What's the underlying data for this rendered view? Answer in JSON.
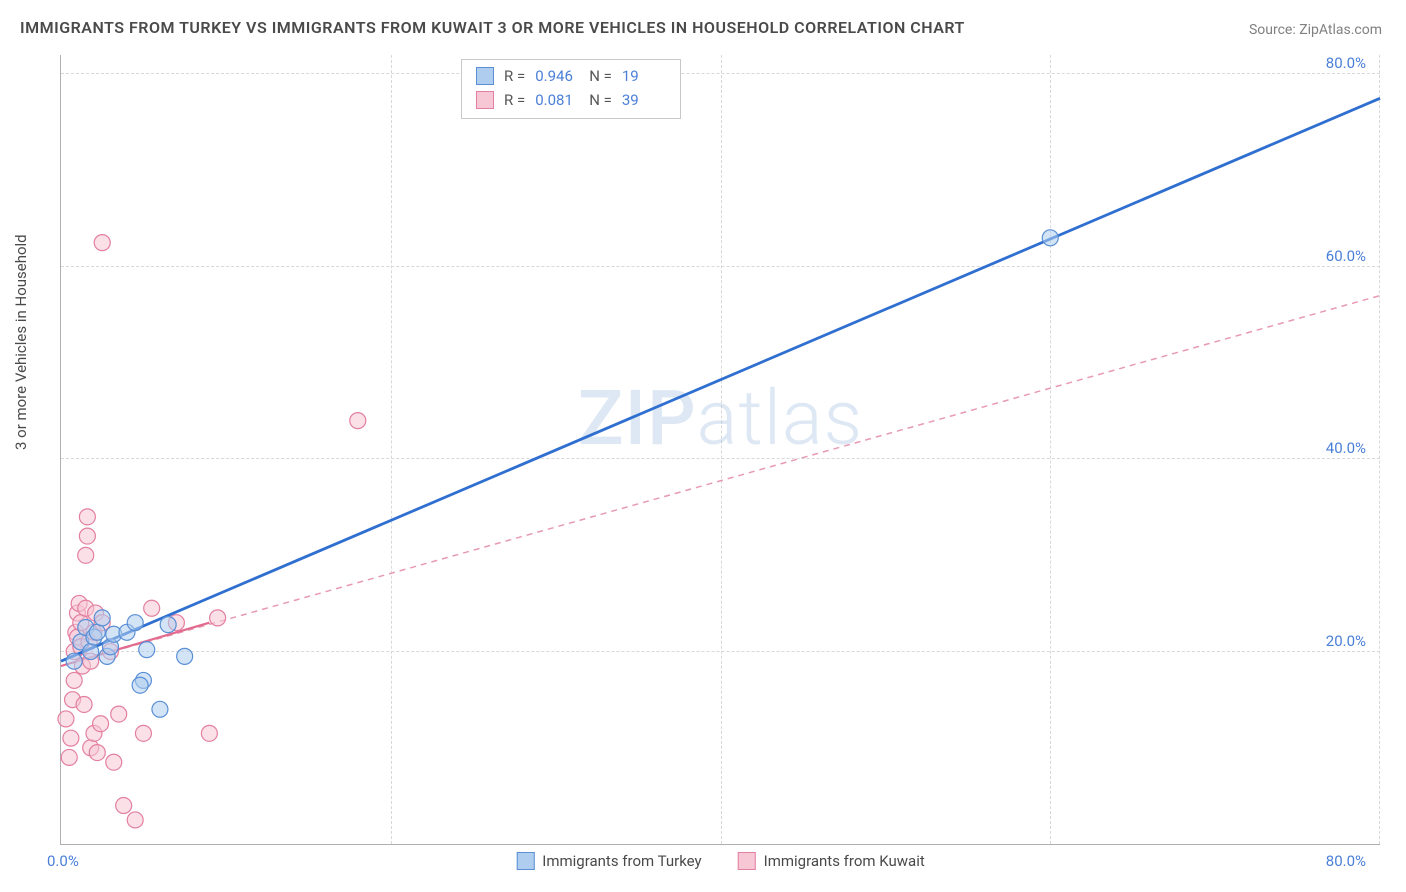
{
  "title": "IMMIGRANTS FROM TURKEY VS IMMIGRANTS FROM KUWAIT 3 OR MORE VEHICLES IN HOUSEHOLD CORRELATION CHART",
  "source_label": "Source: ZipAtlas.com",
  "watermark_a": "ZIP",
  "watermark_b": "atlas",
  "ylabel": "3 or more Vehicles in Household",
  "axis": {
    "x_min_label": "0.0%",
    "x_max_label": "80.0%",
    "y_ticks": [
      "20.0%",
      "40.0%",
      "60.0%",
      "80.0%"
    ],
    "xlim": [
      0,
      80
    ],
    "ylim": [
      0,
      82
    ],
    "grid_color": "#d8d8d8",
    "tick_color": "#4a7fd8",
    "tick_fontsize": 15
  },
  "stats_legend": {
    "rows": [
      {
        "swatch_fill": "#aecdef",
        "swatch_border": "#5a8fd6",
        "r_label": "R =",
        "r_value": "0.946",
        "n_label": "N =",
        "n_value": "19"
      },
      {
        "swatch_fill": "#f7c7d5",
        "swatch_border": "#e37fa0",
        "r_label": "R =",
        "r_value": "0.081",
        "n_label": "N =",
        "n_value": "39"
      }
    ]
  },
  "series_legend": {
    "items": [
      {
        "swatch_fill": "#aecdef",
        "swatch_border": "#5a8fd6",
        "label": "Immigrants from Turkey"
      },
      {
        "swatch_fill": "#f7c7d5",
        "swatch_border": "#e37fa0",
        "label": "Immigrants from Kuwait"
      }
    ]
  },
  "chart": {
    "type": "scatter",
    "background_color": "#ffffff",
    "marker_radius": 8,
    "marker_opacity": 0.55,
    "series": [
      {
        "name": "turkey",
        "color_fill": "#aecdef",
        "color_stroke": "#5a8fd6",
        "trend": {
          "x1": 0,
          "y1": 19.0,
          "x2": 80,
          "y2": 77.5,
          "stroke": "#2f6fd0",
          "width": 2.8,
          "dash": "none"
        },
        "points": [
          [
            0.8,
            19.0
          ],
          [
            1.2,
            21.0
          ],
          [
            1.5,
            22.5
          ],
          [
            1.8,
            20.0
          ],
          [
            2.0,
            21.5
          ],
          [
            2.2,
            22.0
          ],
          [
            2.5,
            23.5
          ],
          [
            2.8,
            19.5
          ],
          [
            3.0,
            20.5
          ],
          [
            3.2,
            21.8
          ],
          [
            4.0,
            22.0
          ],
          [
            4.5,
            23.0
          ],
          [
            5.0,
            17.0
          ],
          [
            5.2,
            20.2
          ],
          [
            6.0,
            14.0
          ],
          [
            6.5,
            22.8
          ],
          [
            7.5,
            19.5
          ],
          [
            4.8,
            16.5
          ],
          [
            60.0,
            63.0
          ]
        ]
      },
      {
        "name": "kuwait",
        "color_fill": "#f7c7d5",
        "color_stroke": "#e37fa0",
        "trend": {
          "x1": 0,
          "y1": 18.5,
          "x2": 80,
          "y2": 57.0,
          "stroke": "#e89ab2",
          "width": 1.5,
          "dash": "6 5"
        },
        "trend_solid": {
          "x1": 0,
          "y1": 18.5,
          "x2": 9,
          "y2": 23.0,
          "stroke": "#e26a8e",
          "width": 2.2
        },
        "points": [
          [
            0.3,
            13.0
          ],
          [
            0.5,
            9.0
          ],
          [
            0.6,
            11.0
          ],
          [
            0.7,
            15.0
          ],
          [
            0.8,
            17.0
          ],
          [
            0.8,
            20.0
          ],
          [
            0.9,
            22.0
          ],
          [
            1.0,
            24.0
          ],
          [
            1.0,
            21.5
          ],
          [
            1.1,
            25.0
          ],
          [
            1.2,
            20.5
          ],
          [
            1.2,
            23.0
          ],
          [
            1.3,
            18.5
          ],
          [
            1.4,
            14.5
          ],
          [
            1.5,
            24.5
          ],
          [
            1.5,
            30.0
          ],
          [
            1.6,
            32.0
          ],
          [
            1.6,
            34.0
          ],
          [
            1.7,
            21.0
          ],
          [
            1.8,
            19.0
          ],
          [
            1.8,
            10.0
          ],
          [
            2.0,
            22.0
          ],
          [
            2.0,
            11.5
          ],
          [
            2.1,
            24.0
          ],
          [
            2.2,
            9.5
          ],
          [
            2.4,
            12.5
          ],
          [
            2.5,
            23.0
          ],
          [
            2.5,
            62.5
          ],
          [
            3.0,
            20.0
          ],
          [
            3.2,
            8.5
          ],
          [
            3.5,
            13.5
          ],
          [
            3.8,
            4.0
          ],
          [
            4.5,
            2.5
          ],
          [
            5.0,
            11.5
          ],
          [
            5.5,
            24.5
          ],
          [
            7.0,
            23.0
          ],
          [
            9.0,
            11.5
          ],
          [
            9.5,
            23.5
          ],
          [
            18.0,
            44.0
          ]
        ]
      }
    ]
  },
  "colors": {
    "axis_line": "#b0b0b0",
    "title_color": "#4a4a4a",
    "source_color": "#808080"
  }
}
